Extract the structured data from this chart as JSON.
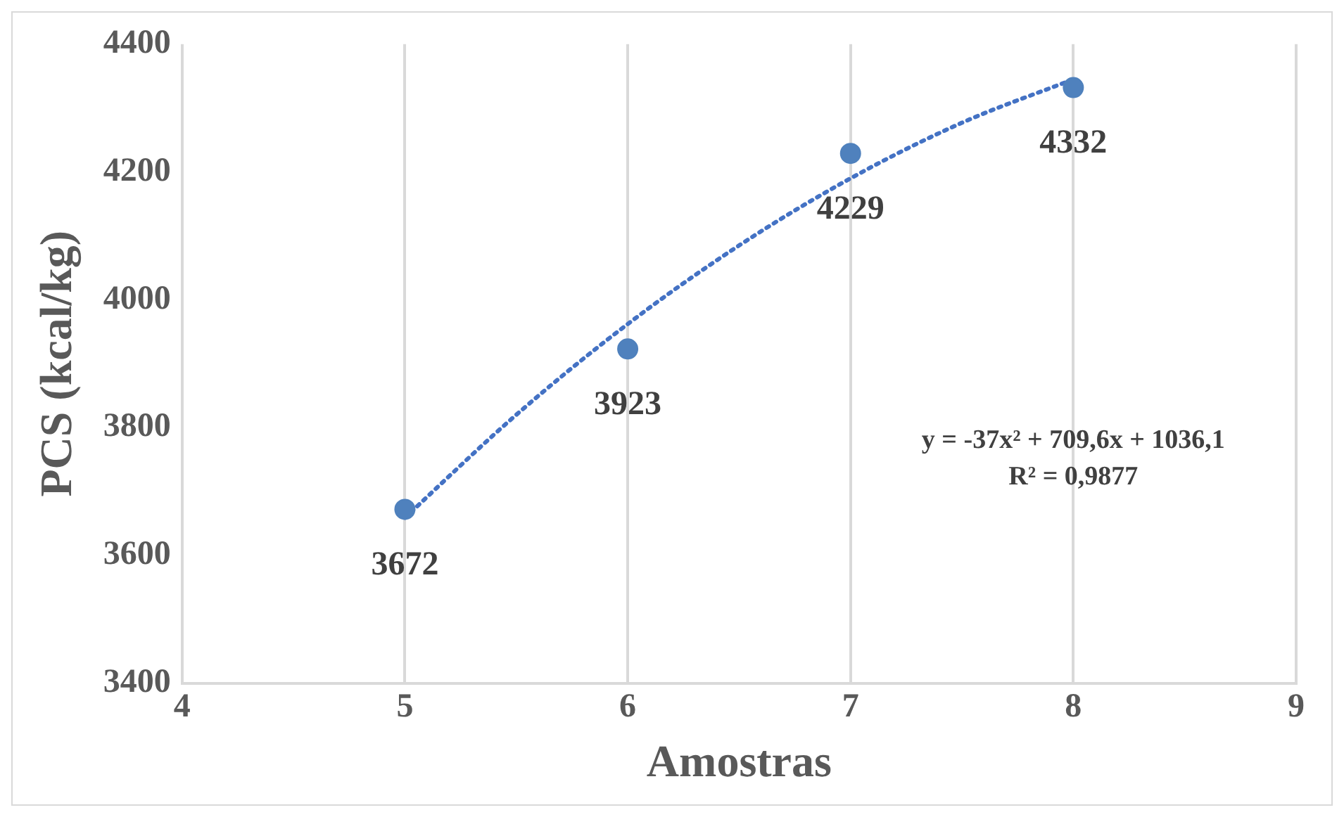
{
  "chart_data": {
    "type": "scatter",
    "xlabel": "Amostras",
    "ylabel": "PCS (kcal/kg)",
    "xlim": [
      4,
      9
    ],
    "xticks": [
      4,
      5,
      6,
      7,
      8,
      9
    ],
    "ylim": [
      3400,
      4400
    ],
    "yticks": [
      3400,
      3600,
      3800,
      4000,
      4200,
      4400
    ],
    "grid": "x",
    "legend": false,
    "marker": "circle",
    "series": [
      {
        "color": "#4f81bd",
        "x": [
          5,
          6,
          7,
          8
        ],
        "values": [
          3672,
          3923,
          4229,
          4332
        ],
        "value_labels": [
          "3672",
          "3923",
          "4229",
          "4332"
        ]
      },
      {
        "type": "line",
        "color": "#4472c4",
        "line_style": "dotted",
        "marker": "none",
        "x": [
          5,
          5.5,
          6,
          6.5,
          7,
          7.5,
          8
        ],
        "values": [
          3659,
          3820,
          3962,
          4085,
          4190,
          4277,
          4345
        ]
      }
    ],
    "annotations": [
      "y = -37x² + 709,6x + 1036,1",
      "R² = 0,9877"
    ]
  }
}
